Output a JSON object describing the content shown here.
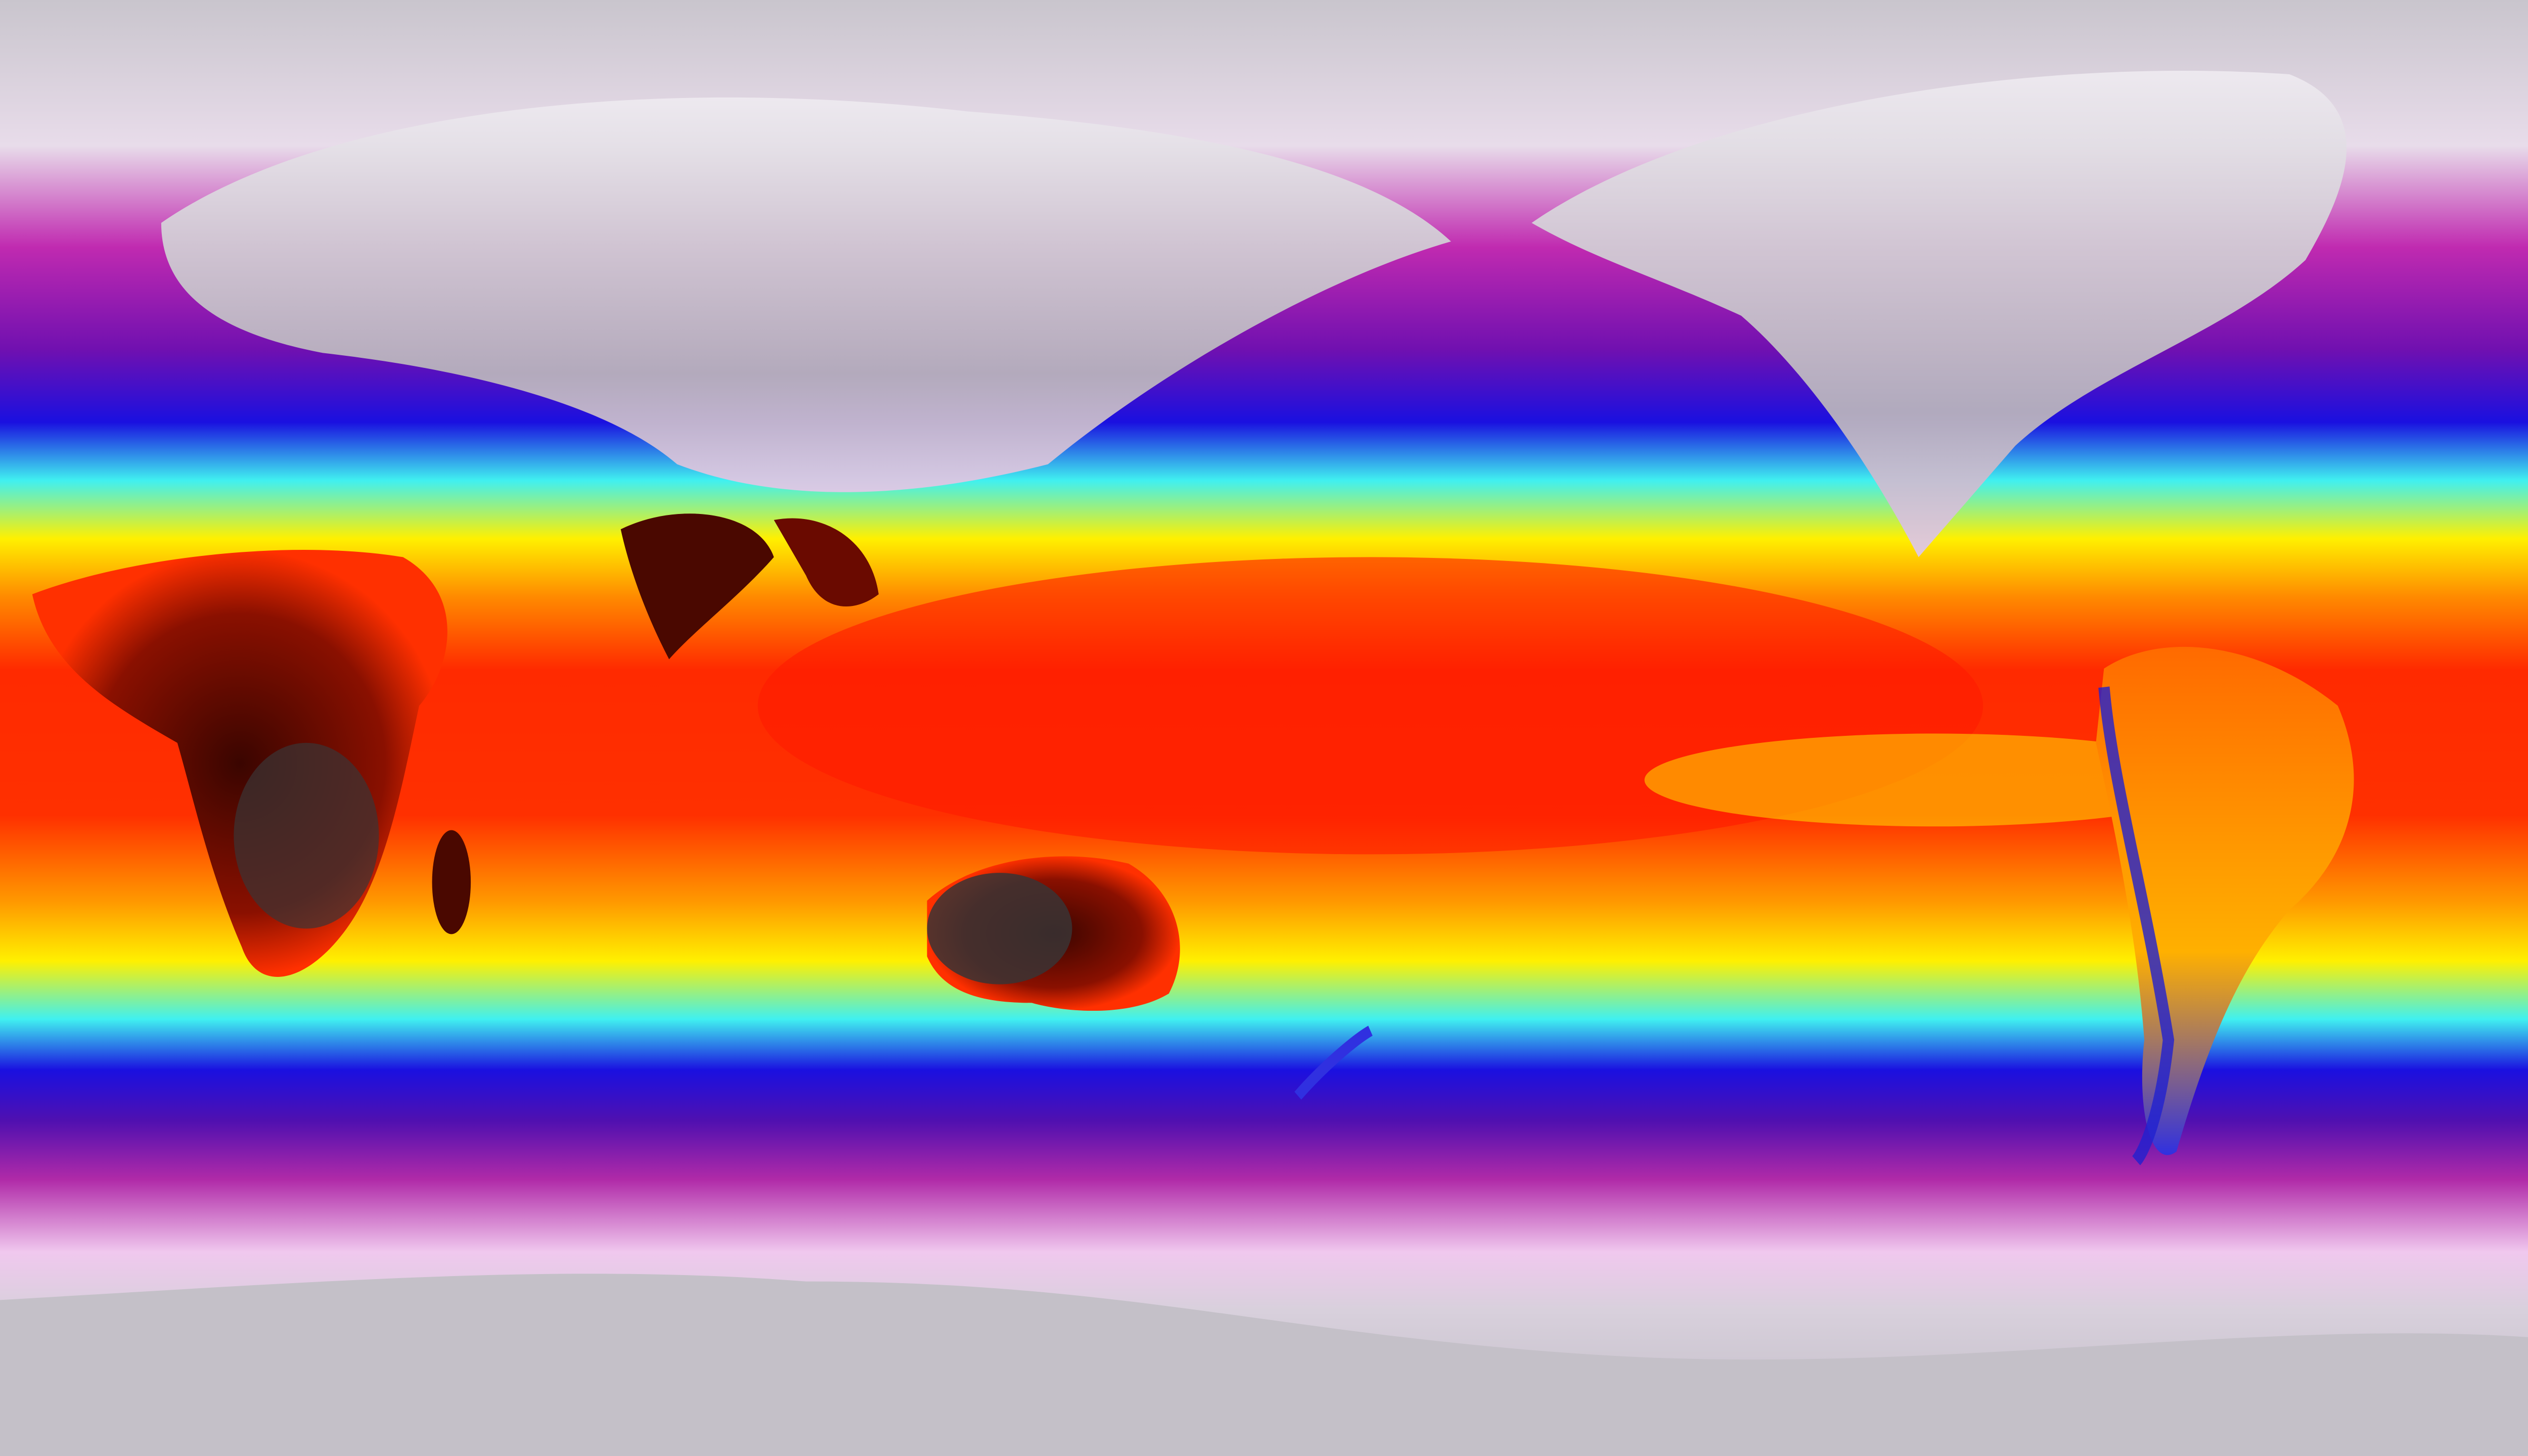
{
  "map": {
    "kind": "global temperature field, equirectangular projection",
    "palette": {
      "polar": "#c9c5cd",
      "cold_white": "#f3dff2",
      "magenta": "#b0109e",
      "purple": "#6a0bb0",
      "blue": "#1a10e0",
      "cyan": "#40f0f0",
      "yellow": "#fff000",
      "orange": "#ff8a00",
      "red": "#ff2a00",
      "dark_red": "#5a0800",
      "desert_dark": "#3a3434"
    },
    "features": [
      "eurasia",
      "north-america",
      "africa",
      "australia",
      "south-america",
      "antarctica",
      "india"
    ]
  }
}
